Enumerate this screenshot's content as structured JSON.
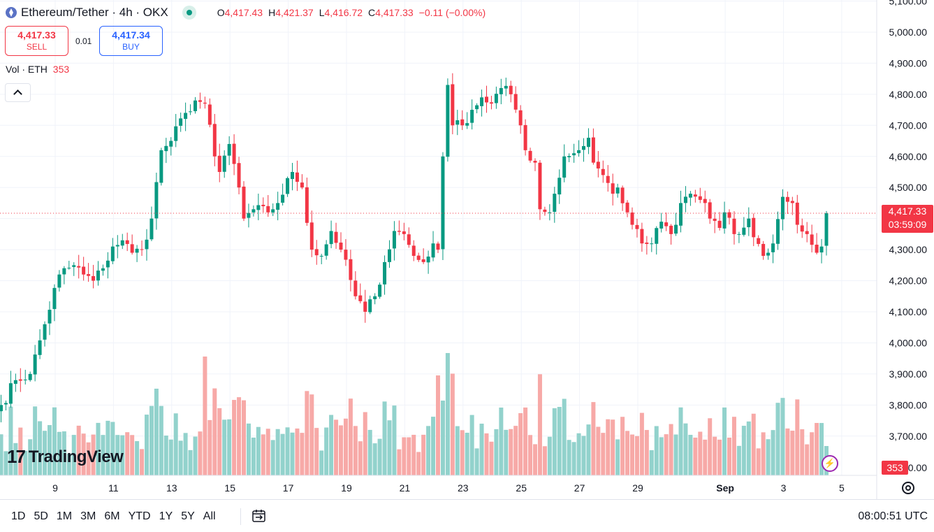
{
  "header": {
    "symbol_title": "Ethereum/Tether · 4h · OKX",
    "ohlc": {
      "o_label": "O",
      "o": "4,417.43",
      "h_label": "H",
      "h": "4,421.37",
      "l_label": "L",
      "l": "4,416.72",
      "c_label": "C",
      "c": "4,417.33",
      "change": "−0.11 (−0.00%)"
    }
  },
  "trade": {
    "sell_price": "4,417.33",
    "sell_label": "SELL",
    "spread": "0.01",
    "buy_price": "4,417.34",
    "buy_label": "BUY"
  },
  "volume_legend": {
    "label": "Vol · ETH",
    "value": "353"
  },
  "logo": {
    "text": "TradingView"
  },
  "price_tag": {
    "price": "4,417.33",
    "countdown": "03:59:09"
  },
  "volume_tag": "353",
  "bottom_bar": {
    "ranges": [
      "1D",
      "5D",
      "1M",
      "3M",
      "6M",
      "YTD",
      "1Y",
      "5Y",
      "All"
    ],
    "clock": "08:00:51 UTC"
  },
  "colors": {
    "up": "#089981",
    "down": "#f23645",
    "up_volume": "#92d2cc",
    "down_volume": "#f7a9a7",
    "grid": "#f0f3fa",
    "price_line": "#f23645"
  },
  "chart_data": {
    "type": "candlestick",
    "interval": "4h",
    "y_axis": {
      "side": "right",
      "range": [
        3650,
        5100
      ],
      "ticks": [
        5100,
        5000,
        4900,
        4800,
        4700,
        4600,
        4500,
        4400,
        4300,
        4200,
        4100,
        4000,
        3900,
        3800,
        3700
      ],
      "tick_labels": [
        "5,100.00",
        "5,000.00",
        "4,900.00",
        "4,800.00",
        "4,700.00",
        "4,600.00",
        "4,500.00",
        "4,400.00",
        "4,300.00",
        "4,200.00",
        "4,100.00",
        "4,000.00",
        "3,900.00",
        "3,800.00",
        "3,700.00"
      ],
      "bottom_label": "00.00"
    },
    "x_axis": {
      "tick_labels": [
        "9",
        "11",
        "13",
        "15",
        "17",
        "19",
        "21",
        "23",
        "25",
        "27",
        "29",
        "Sep",
        "3",
        "5"
      ],
      "tick_candle_index": [
        10,
        22,
        34,
        46,
        58,
        70,
        82,
        94,
        106,
        118,
        130,
        148,
        160,
        172
      ]
    },
    "last_price": 4417.33,
    "grid": true,
    "waypoints": [
      [
        0,
        3800
      ],
      [
        3,
        3880
      ],
      [
        6,
        3900
      ],
      [
        9,
        4060
      ],
      [
        12,
        4220
      ],
      [
        15,
        4250
      ],
      [
        17,
        4220
      ],
      [
        19,
        4200
      ],
      [
        21,
        4240
      ],
      [
        23,
        4310
      ],
      [
        25,
        4330
      ],
      [
        27,
        4290
      ],
      [
        29,
        4300
      ],
      [
        31,
        4400
      ],
      [
        33,
        4620
      ],
      [
        35,
        4650
      ],
      [
        38,
        4740
      ],
      [
        40,
        4780
      ],
      [
        42,
        4770
      ],
      [
        44,
        4600
      ],
      [
        45,
        4550
      ],
      [
        47,
        4640
      ],
      [
        49,
        4500
      ],
      [
        50,
        4400
      ],
      [
        52,
        4430
      ],
      [
        55,
        4420
      ],
      [
        57,
        4450
      ],
      [
        60,
        4550
      ],
      [
        62,
        4500
      ],
      [
        64,
        4300
      ],
      [
        66,
        4280
      ],
      [
        68,
        4360
      ],
      [
        70,
        4300
      ],
      [
        73,
        4150
      ],
      [
        75,
        4100
      ],
      [
        77,
        4150
      ],
      [
        79,
        4260
      ],
      [
        81,
        4360
      ],
      [
        83,
        4350
      ],
      [
        85,
        4280
      ],
      [
        87,
        4260
      ],
      [
        89,
        4320
      ],
      [
        90,
        4300
      ],
      [
        91,
        4600
      ],
      [
        92,
        4830
      ],
      [
        93,
        4700
      ],
      [
        95,
        4700
      ],
      [
        97,
        4750
      ],
      [
        99,
        4790
      ],
      [
        101,
        4770
      ],
      [
        103,
        4820
      ],
      [
        105,
        4800
      ],
      [
        107,
        4700
      ],
      [
        108,
        4620
      ],
      [
        110,
        4580
      ],
      [
        111,
        4430
      ],
      [
        113,
        4420
      ],
      [
        114,
        4480
      ],
      [
        116,
        4600
      ],
      [
        119,
        4620
      ],
      [
        121,
        4660
      ],
      [
        122,
        4580
      ],
      [
        124,
        4540
      ],
      [
        126,
        4480
      ],
      [
        127,
        4500
      ],
      [
        129,
        4420
      ],
      [
        130,
        4380
      ],
      [
        132,
        4320
      ],
      [
        134,
        4320
      ],
      [
        136,
        4390
      ],
      [
        138,
        4350
      ],
      [
        139,
        4380
      ],
      [
        140,
        4450
      ],
      [
        142,
        4480
      ],
      [
        145,
        4450
      ],
      [
        146,
        4400
      ],
      [
        148,
        4370
      ],
      [
        149,
        4420
      ],
      [
        151,
        4350
      ],
      [
        152,
        4350
      ],
      [
        154,
        4400
      ],
      [
        155,
        4340
      ],
      [
        157,
        4280
      ],
      [
        159,
        4320
      ],
      [
        161,
        4470
      ],
      [
        163,
        4450
      ],
      [
        164,
        4380
      ],
      [
        166,
        4350
      ],
      [
        168,
        4290
      ],
      [
        169,
        4310
      ],
      [
        170,
        4417.33
      ]
    ],
    "volume": {
      "label": "Vol · ETH",
      "last_value": 353
    },
    "notes": "Waypoints are approximate close prices [candle index, price] read off the 4h candles; 171 candles total."
  }
}
